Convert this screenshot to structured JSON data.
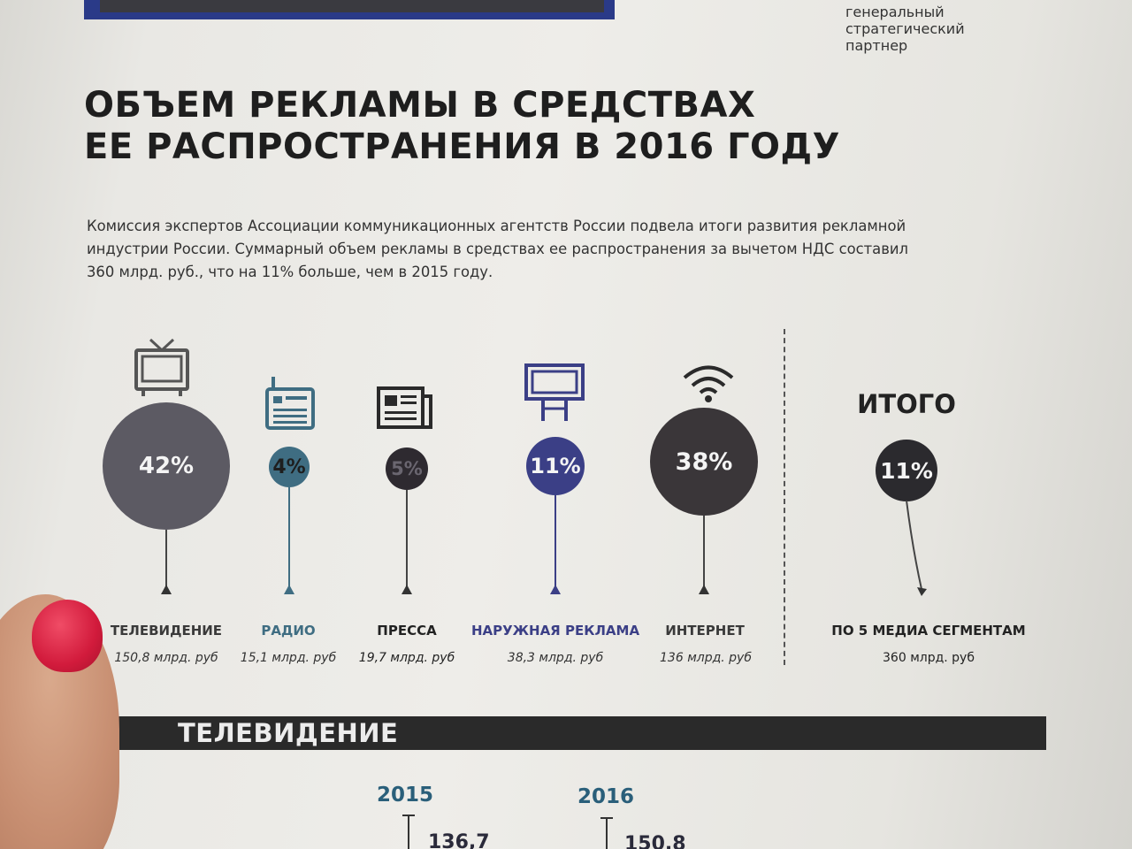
{
  "sponsor": {
    "line1": "генеральный",
    "line2": "стратегический",
    "line3": "партнер"
  },
  "headline": {
    "line1": "ОБЪЕМ РЕКЛАМЫ В СРЕДСТВАХ",
    "line2": "ЕЕ РАСПРОСТРАНЕНИЯ В 2016 ГОДУ"
  },
  "lead": {
    "line1": "Комиссия экспертов Ассоциации коммуникационных агентств России подвела итоги развития рекламной",
    "line2": "индустрии России. Суммарный объем рекламы в средствах ее распространения за вычетом НДС составил",
    "line3": "360 млрд. руб., что на 11% больше, чем в 2015 году."
  },
  "segments": [
    {
      "icon": "tv-icon",
      "percent": "42%",
      "label": "ТЕЛЕВИДЕНИЕ",
      "amount": "150,8 млрд. руб",
      "color": "#5c5a63",
      "label_color": "#3a3a3a"
    },
    {
      "icon": "radio-icon",
      "percent": "4%",
      "label": "РАДИО",
      "amount": "15,1 млрд. руб",
      "color": "#3f6d82",
      "label_color": "#3f6d82"
    },
    {
      "icon": "newspaper-icon",
      "percent": "5%",
      "label": "ПРЕССА",
      "amount": "19,7 млрд. руб",
      "color": "#2e2a30",
      "label_color": "#222222"
    },
    {
      "icon": "billboard-icon",
      "percent": "11%",
      "label": "НАРУЖНАЯ РЕКЛАМА",
      "amount": "38,3 млрд. руб",
      "color": "#3b3f86",
      "label_color": "#3b3f86"
    },
    {
      "icon": "wifi-icon",
      "percent": "38%",
      "label": "ИНТЕРНЕТ",
      "amount": "136 млрд. руб",
      "color": "#3a3639",
      "label_color": "#3a3a3a"
    }
  ],
  "total": {
    "title": "ИТОГО",
    "percent": "11%",
    "label": "ПО 5 МЕДИА СЕГМЕНТАМ",
    "amount": "360 млрд. руб",
    "color": "#2b2a2e"
  },
  "tv_section": {
    "title": "ТЕЛЕВИДЕНИЕ",
    "years": [
      {
        "year": "2015",
        "value": "136,7"
      },
      {
        "year": "2016",
        "value": "150,8"
      }
    ]
  }
}
